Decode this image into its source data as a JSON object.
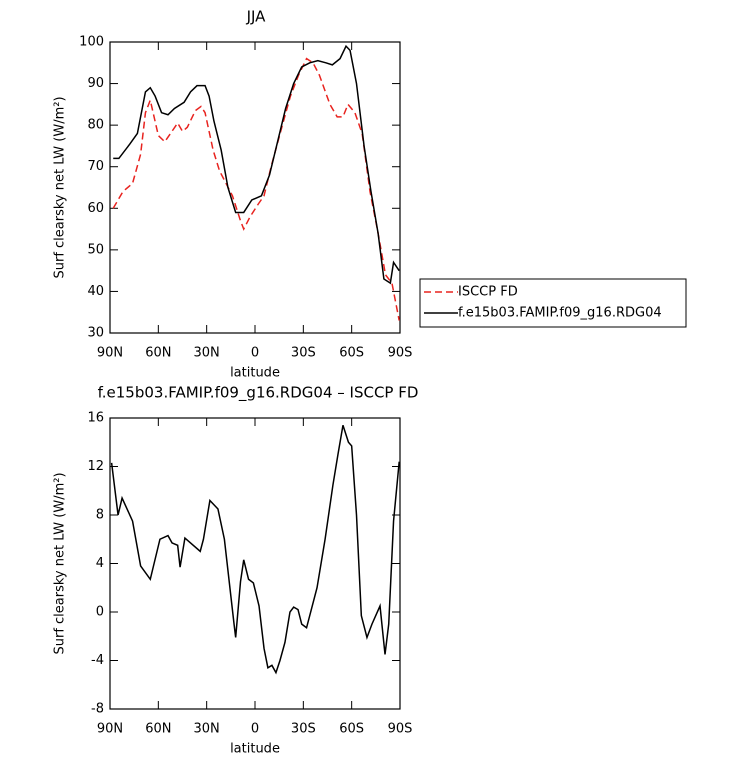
{
  "chart_data": [
    {
      "type": "line",
      "title": "JJA",
      "xlabel": "latitude",
      "ylabel": "Surf clearsky net LW (W/m²)",
      "xlim": [
        90,
        -90
      ],
      "xticks": [
        {
          "value": 90,
          "label": "90N"
        },
        {
          "value": 60,
          "label": "60N"
        },
        {
          "value": 30,
          "label": "30N"
        },
        0,
        {
          "value": -30,
          "label": "30S"
        },
        {
          "value": -60,
          "label": "60S"
        },
        {
          "value": -90,
          "label": "90S"
        }
      ],
      "ylim": [
        30,
        100
      ],
      "yticks": [
        30,
        40,
        50,
        60,
        70,
        80,
        90,
        100
      ],
      "legend": "right",
      "series": [
        {
          "name": "ISCCP FD",
          "color": "#e8231f",
          "style": "dashed",
          "x": [
            88,
            82,
            76,
            71,
            68,
            65,
            60,
            56,
            48,
            45,
            42,
            37,
            33.5,
            31,
            26,
            22,
            14,
            9,
            7,
            3,
            -2,
            -5.6,
            -10,
            -17,
            -22,
            -27,
            -32,
            -36,
            -40,
            -46.5,
            -51,
            -54.6,
            -57.7,
            -62,
            -66.5,
            -71.4,
            -76.4,
            -81,
            -85,
            -88,
            -89.5
          ],
          "values": [
            60,
            64,
            66,
            73,
            83,
            86,
            77.5,
            76,
            80.5,
            78.5,
            79.5,
            83.5,
            84.5,
            83,
            74,
            69,
            63,
            57,
            55,
            58,
            61,
            63,
            70,
            80,
            87,
            92,
            96,
            95,
            92,
            85,
            82,
            82,
            85,
            83,
            78,
            64,
            54,
            44,
            42,
            36,
            33
          ]
        },
        {
          "name": "f.e15b03.FAMIP.f09_g16.RDG04",
          "color": "#000000",
          "style": "solid",
          "x": [
            88,
            84.5,
            77.6,
            73,
            68,
            65,
            62,
            58,
            54,
            50,
            44,
            40,
            36,
            31,
            28.5,
            25.5,
            21,
            16.8,
            12,
            7,
            2,
            -4,
            -9,
            -14,
            -19,
            -24,
            -29,
            -34,
            -39,
            -44,
            -48,
            -52.8,
            -56.5,
            -59,
            -63,
            -67.7,
            -72,
            -76.4,
            -80,
            -84,
            -86,
            -89.5
          ],
          "values": [
            72,
            72,
            75.5,
            78,
            88,
            89,
            87,
            83,
            82.5,
            84,
            85.5,
            88,
            89.5,
            89.5,
            87,
            81,
            74,
            65,
            59,
            59,
            62,
            63,
            68,
            76,
            84,
            90,
            94,
            95,
            95.5,
            95,
            94.5,
            96,
            99,
            98,
            90,
            75,
            64,
            54,
            43,
            42,
            47,
            45
          ]
        }
      ]
    },
    {
      "type": "line",
      "title": "f.e15b03.FAMIP.f09_g16.RDG04 – ISCCP FD",
      "xlabel": "latitude",
      "ylabel": "Surf clearsky net LW (W/m²)",
      "xlim": [
        90,
        -90
      ],
      "xticks": [
        {
          "value": 90,
          "label": "90N"
        },
        {
          "value": 60,
          "label": "60N"
        },
        {
          "value": 30,
          "label": "30N"
        },
        0,
        {
          "value": -30,
          "label": "30S"
        },
        {
          "value": -60,
          "label": "60S"
        },
        {
          "value": -90,
          "label": "90S"
        }
      ],
      "ylim": [
        -8,
        16
      ],
      "yticks": [
        -8,
        -4,
        0,
        4,
        8,
        12,
        16
      ],
      "color": "#000000",
      "x": [
        89,
        85,
        82.5,
        76,
        71,
        65,
        59,
        54,
        51.5,
        48,
        46.5,
        43.5,
        34,
        32,
        28,
        23,
        19,
        13,
        12,
        9,
        7,
        4,
        1,
        -2.5,
        -5.6,
        -8,
        -10.5,
        -13,
        -15.5,
        -18.6,
        -21.7,
        -24,
        -26.7,
        -29,
        -32,
        -38.5,
        -43.5,
        -48.4,
        -51.5,
        -54.6,
        -58,
        -60,
        -63,
        -66,
        -69.5,
        -72.6,
        -77.6,
        -80.7,
        -83,
        -86,
        -89.5
      ],
      "values": [
        12.3,
        8,
        9.4,
        7.5,
        3.8,
        2.7,
        6,
        6.3,
        5.7,
        5.5,
        3.7,
        6.1,
        5,
        6,
        9.2,
        8.5,
        6,
        -1,
        -2.1,
        2.5,
        4.3,
        2.7,
        2.4,
        0.5,
        -3,
        -4.6,
        -4.4,
        -5,
        -4,
        -2.5,
        0,
        0.4,
        0.2,
        -1,
        -1.3,
        2,
        6,
        10.5,
        13,
        15.4,
        14,
        13.7,
        8,
        -0.3,
        -2.1,
        -1,
        0.5,
        -3.5,
        -1,
        7.5,
        12.4
      ]
    }
  ]
}
